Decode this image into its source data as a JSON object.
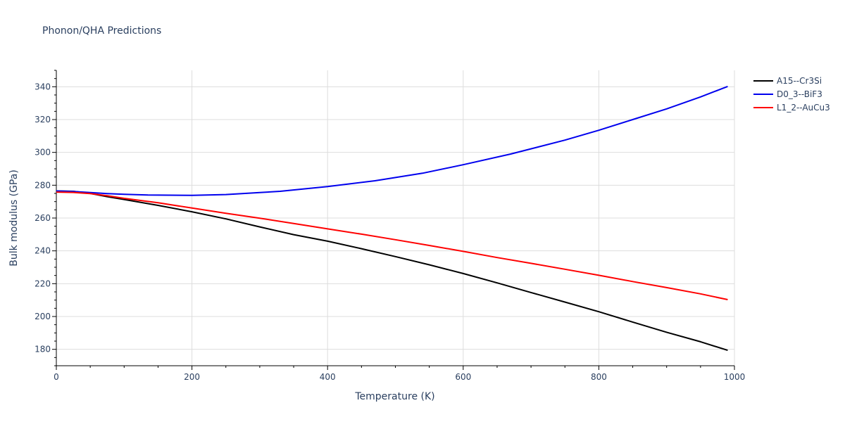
{
  "chart_data": {
    "type": "line",
    "title": "Phonon/QHA Predictions",
    "xlabel": "Temperature (K)",
    "ylabel": "Bulk modulus (GPa)",
    "xlim": [
      0,
      1000
    ],
    "ylim": [
      170,
      350
    ],
    "xticks": [
      0,
      200,
      400,
      600,
      800,
      1000
    ],
    "yticks": [
      180,
      200,
      220,
      240,
      260,
      280,
      300,
      320,
      340
    ],
    "grid": true,
    "legend_position": "top-right",
    "series": [
      {
        "name": "A15--Cr3Si",
        "color": "#000000",
        "x": [
          0,
          25,
          50,
          75,
          100,
          150,
          200,
          250,
          300,
          350,
          400,
          450,
          500,
          550,
          600,
          650,
          700,
          750,
          800,
          850,
          900,
          950,
          990
        ],
        "y": [
          276.5,
          276.3,
          275.0,
          273.0,
          271.3,
          267.7,
          263.8,
          259.5,
          254.6,
          249.9,
          245.9,
          241.3,
          236.5,
          231.5,
          226.2,
          220.5,
          214.6,
          208.8,
          202.9,
          196.6,
          190.4,
          184.6,
          179.4
        ]
      },
      {
        "name": "D0_3--BiF3",
        "color": "#0000ee",
        "x": [
          0,
          25,
          50,
          75,
          100,
          135,
          200,
          250,
          300,
          330,
          400,
          470,
          540,
          600,
          670,
          750,
          800,
          850,
          900,
          950,
          990
        ],
        "y": [
          276.5,
          276.2,
          275.5,
          274.9,
          274.5,
          274.0,
          273.8,
          274.3,
          275.5,
          276.3,
          279.2,
          282.7,
          287.3,
          292.5,
          299.0,
          307.5,
          313.5,
          320.0,
          326.5,
          333.8,
          340.2
        ]
      },
      {
        "name": "L1_2--AuCu3",
        "color": "#ff0000",
        "x": [
          0,
          25,
          50,
          75,
          100,
          150,
          200,
          250,
          300,
          350,
          400,
          450,
          500,
          550,
          600,
          650,
          700,
          750,
          800,
          850,
          900,
          950,
          990
        ],
        "y": [
          275.8,
          275.6,
          274.9,
          273.6,
          272.0,
          269.3,
          266.1,
          262.9,
          259.9,
          256.7,
          253.4,
          250.2,
          246.8,
          243.3,
          239.7,
          235.9,
          232.4,
          228.8,
          225.1,
          221.3,
          217.6,
          213.8,
          210.3
        ]
      }
    ]
  }
}
